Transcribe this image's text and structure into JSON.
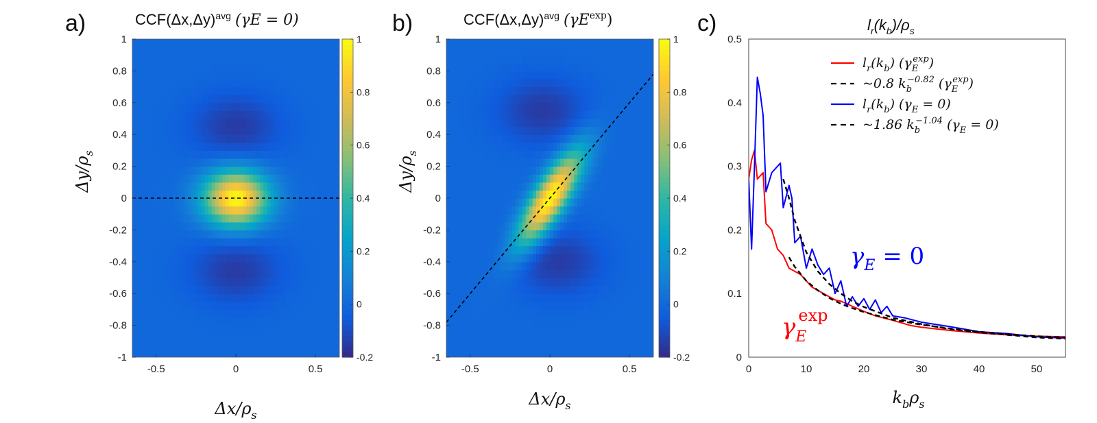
{
  "panels": {
    "a": {
      "label": "a)",
      "title": "CCF(Δx,Δy)avg (γE = 0)",
      "title_parts": {
        "main": "CCF(Δx,Δy)",
        "sup": "avg",
        "paren": "(γE = 0)"
      },
      "xlabel": "Δx/ρs",
      "ylabel": "Δy/ρs"
    },
    "b": {
      "label": "b)",
      "title": "CCF(Δx,Δy)avg (γE exp)",
      "title_parts": {
        "main": "CCF(Δx,Δy)",
        "sup": "avg",
        "paren": "(γE",
        "paren_sup": "exp",
        "paren_close": ")"
      },
      "xlabel": "Δx/ρs",
      "ylabel": "Δy/ρs"
    },
    "c": {
      "label": "c)",
      "title": "lr(kb)/ρs",
      "xlabel": "kbρs",
      "annotation_blue": "γE = 0",
      "annotation_red": "γE exp"
    }
  },
  "colors": {
    "red": "#ff0000",
    "blue": "#0000ff",
    "black": "#000000",
    "parula": [
      "#352a87",
      "#0f5cdd",
      "#1481d6",
      "#06a4ca",
      "#2eb7a4",
      "#87bf77",
      "#d1bb59",
      "#fec832",
      "#f9fb0e"
    ]
  },
  "chart_data": [
    {
      "type": "heatmap",
      "panel": "a",
      "title": "CCF(Δx,Δy)avg (γE = 0)",
      "xlabel": "Δx/ρs",
      "ylabel": "Δy/ρs",
      "xlim": [
        -0.65,
        0.65
      ],
      "ylim": [
        -1,
        1
      ],
      "xticks": [
        "-0.5",
        "0",
        "0.5"
      ],
      "yticks": [
        "-1",
        "-0.8",
        "-0.6",
        "-0.4",
        "-0.2",
        "0",
        "0.2",
        "0.4",
        "0.6",
        "0.8",
        "1"
      ],
      "colorbar": {
        "range": [
          -0.2,
          1
        ],
        "ticks": [
          "-0.2",
          "0",
          "0.2",
          "0.4",
          "0.6",
          "0.8",
          "1"
        ]
      },
      "peak": {
        "x": 0,
        "y": 0,
        "value": 1
      },
      "minima": [
        {
          "x": 0,
          "y": 0.45,
          "value": -0.15
        },
        {
          "x": 0,
          "y": -0.45,
          "value": -0.15
        }
      ],
      "tilt_line": {
        "points": [
          [
            -0.65,
            0
          ],
          [
            0.65,
            0
          ]
        ],
        "style": "dashed"
      }
    },
    {
      "type": "heatmap",
      "panel": "b",
      "title": "CCF(Δx,Δy)avg (γE exp)",
      "xlabel": "Δx/ρs",
      "ylabel": "Δy/ρs",
      "xlim": [
        -0.65,
        0.65
      ],
      "ylim": [
        -1,
        1
      ],
      "xticks": [
        "-0.5",
        "0",
        "0.5"
      ],
      "yticks": [
        "-1",
        "-0.8",
        "-0.6",
        "-0.4",
        "-0.2",
        "0",
        "0.2",
        "0.4",
        "0.6",
        "0.8",
        "1"
      ],
      "colorbar": {
        "range": [
          -0.2,
          1
        ],
        "ticks": [
          "-0.2",
          "0",
          "0.2",
          "0.4",
          "0.6",
          "0.8",
          "1"
        ]
      },
      "peak": {
        "x": 0,
        "y": 0,
        "value": 1
      },
      "minima": [
        {
          "x": -0.05,
          "y": 0.55,
          "value": -0.12
        },
        {
          "x": 0.05,
          "y": -0.4,
          "value": -0.12
        }
      ],
      "tilt_line": {
        "points": [
          [
            -0.65,
            -0.78
          ],
          [
            0.65,
            0.78
          ]
        ],
        "style": "dashed"
      }
    },
    {
      "type": "line",
      "panel": "c",
      "title": "lr(kb)/ρs",
      "xlabel": "kbρs",
      "ylabel": "",
      "xlim": [
        0,
        55
      ],
      "ylim": [
        0,
        0.5
      ],
      "xticks": [
        "0",
        "10",
        "20",
        "30",
        "40",
        "50"
      ],
      "yticks": [
        "0",
        "0.1",
        "0.2",
        "0.3",
        "0.4",
        "0.5"
      ],
      "legend": "top-right",
      "series": [
        {
          "name": "lr(kb) (γE exp)",
          "legend_math": {
            "base": "l",
            "sub": "r",
            "arg": "(k",
            "argsub": "b",
            "tail": ") (γ",
            "tsub": "E",
            "tsup": "exp",
            "close": ")"
          },
          "color": "#ff0000",
          "style": "solid",
          "x": [
            0,
            0.5,
            1,
            1.5,
            2,
            2.5,
            3,
            4,
            5,
            6,
            7,
            8,
            9,
            10,
            11,
            12,
            13,
            14,
            15,
            16,
            18,
            20,
            22,
            25,
            28,
            30,
            35,
            40,
            45,
            50,
            55
          ],
          "y": [
            0.28,
            0.31,
            0.325,
            0.28,
            0.285,
            0.29,
            0.21,
            0.2,
            0.17,
            0.16,
            0.14,
            0.135,
            0.13,
            0.12,
            0.11,
            0.105,
            0.1,
            0.095,
            0.09,
            0.088,
            0.08,
            0.072,
            0.065,
            0.058,
            0.05,
            0.047,
            0.042,
            0.038,
            0.035,
            0.033,
            0.032
          ]
        },
        {
          "name": "~0.8 kb^-0.82 (γE exp)",
          "legend_math": {
            "pre": "~0.8 k",
            "sub": "b",
            "sup": "−0.82",
            "tail": " (γ",
            "tsub": "E",
            "tsup": "exp",
            "close": ")"
          },
          "color": "#000000",
          "style": "dashed",
          "x": [
            7,
            8,
            9,
            10,
            12,
            14,
            16,
            18,
            20,
            25,
            30,
            35,
            40,
            45,
            50,
            55
          ],
          "y": [
            0.157,
            0.142,
            0.131,
            0.12,
            0.105,
            0.093,
            0.084,
            0.077,
            0.071,
            0.059,
            0.051,
            0.045,
            0.04,
            0.036,
            0.033,
            0.031
          ]
        },
        {
          "name": "lr(kb) (γE = 0)",
          "legend_math": {
            "base": "l",
            "sub": "r",
            "arg": "(k",
            "argsub": "b",
            "tail": ") (γ",
            "tsub": "E",
            "tsup": "",
            "close": " = 0)"
          },
          "color": "#0000ff",
          "style": "solid",
          "x": [
            0,
            0.5,
            1,
            1.5,
            2,
            2.5,
            3,
            4,
            5,
            5.5,
            6,
            7,
            7.5,
            8,
            9,
            10,
            11,
            12,
            13,
            14,
            15,
            16,
            17,
            18,
            19,
            20,
            21,
            22,
            23,
            24,
            25,
            27,
            30,
            35,
            40,
            45,
            50,
            55
          ],
          "y": [
            0.28,
            0.17,
            0.3,
            0.44,
            0.415,
            0.38,
            0.26,
            0.29,
            0.3,
            0.305,
            0.235,
            0.27,
            0.25,
            0.18,
            0.19,
            0.14,
            0.17,
            0.145,
            0.13,
            0.14,
            0.1,
            0.12,
            0.08,
            0.095,
            0.08,
            0.092,
            0.075,
            0.09,
            0.07,
            0.08,
            0.065,
            0.062,
            0.055,
            0.048,
            0.04,
            0.037,
            0.032,
            0.03
          ]
        },
        {
          "name": "~1.86 kb^-1.04 (γE = 0)",
          "legend_math": {
            "pre": "~1.86 k",
            "sub": "b",
            "sup": "−1.04",
            "tail": " (γ",
            "tsub": "E",
            "tsup": "",
            "close": " = 0)"
          },
          "color": "#000000",
          "style": "dashed",
          "x": [
            6,
            7,
            8,
            9,
            10,
            12,
            14,
            16,
            18,
            20,
            25,
            30,
            35,
            40,
            45,
            50,
            55
          ],
          "y": [
            0.28,
            0.25,
            0.215,
            0.19,
            0.165,
            0.135,
            0.115,
            0.1,
            0.088,
            0.079,
            0.062,
            0.052,
            0.044,
            0.039,
            0.035,
            0.031,
            0.029
          ]
        }
      ]
    }
  ]
}
